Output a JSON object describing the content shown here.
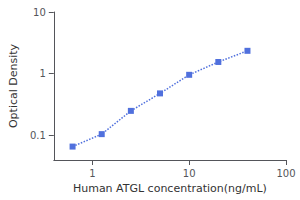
{
  "chart_data": {
    "type": "line",
    "x": [
      0.625,
      1.25,
      2.5,
      5,
      10,
      20,
      40
    ],
    "values": [
      0.066,
      0.105,
      0.25,
      0.48,
      0.96,
      1.55,
      2.35
    ],
    "xlabel": "Human ATGL concentration(ng/mL)",
    "ylabel": "Optical Density",
    "xlim": [
      0.4,
      100
    ],
    "ylim": [
      0.04,
      10
    ],
    "xticks": [
      1,
      10,
      100
    ],
    "yticks": [
      0.1,
      1,
      10
    ],
    "log": true,
    "grid": false,
    "marker": "square",
    "line_style": "dotted"
  }
}
